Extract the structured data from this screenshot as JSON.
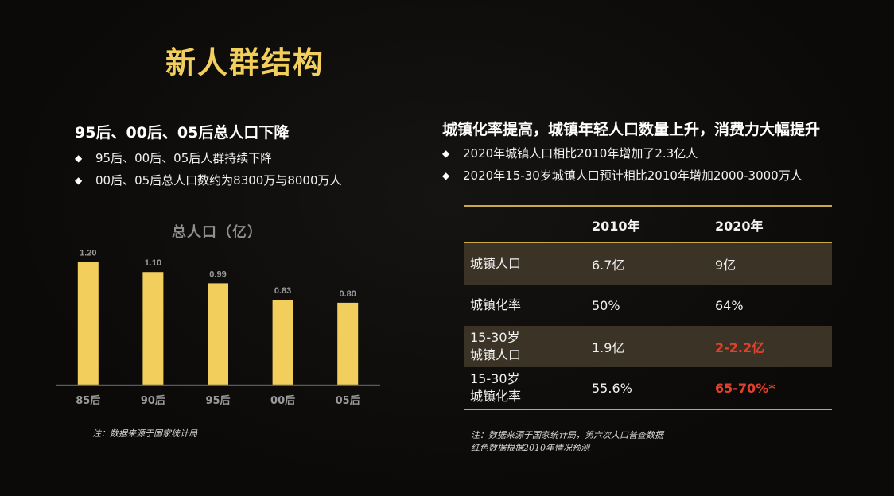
{
  "title": "新人群结构",
  "left": {
    "heading": "95后、00后、05后总人口下降",
    "bullets": [
      "95后、00后、05后人群持续下降",
      "00后、05后总人口数约为8300万与8000万人"
    ],
    "note": "注：数据来源于国家统计局"
  },
  "chart_data": {
    "type": "bar",
    "title": "总人口（亿）",
    "categories": [
      "85后",
      "90后",
      "95后",
      "00后",
      "05后"
    ],
    "values": [
      1.2,
      1.1,
      0.99,
      0.83,
      0.8
    ],
    "value_labels": [
      "1.20",
      "1.10",
      "0.99",
      "0.83",
      "0.80"
    ],
    "ylim": [
      0,
      1.35
    ],
    "grid": false,
    "bar_color": "#f2cf5c"
  },
  "right": {
    "heading": "城镇化率提高，城镇年轻人口数量上升，消费力大幅提升",
    "bullets": [
      "2020年城镇人口相比2010年增加了2.3亿人",
      "2020年15-30岁城镇人口预计相比2010年增加2000-3000万人"
    ],
    "table": {
      "headers": [
        "",
        "2010年",
        "2020年"
      ],
      "rows": [
        {
          "label": [
            "城镇人口"
          ],
          "v2010": "6.7亿",
          "v2020": "9亿",
          "red": false,
          "shade": true
        },
        {
          "label": [
            "城镇化率"
          ],
          "v2010": "50%",
          "v2020": "64%",
          "red": false,
          "shade": false
        },
        {
          "label": [
            "15-30岁",
            "城镇人口"
          ],
          "v2010": "1.9亿",
          "v2020": "2-2.2亿",
          "red": true,
          "shade": true
        },
        {
          "label": [
            "15-30岁",
            "城镇化率"
          ],
          "v2010": "55.6%",
          "v2020": "65-70%*",
          "red": true,
          "shade": false
        }
      ]
    },
    "note_lines": [
      "注：数据来源于国家统计局，第六次人口普查数据",
      "红色数据根据2010年情况预测"
    ]
  },
  "colors": {
    "accent": "#f2cf5c",
    "highlight_red": "#e2412c",
    "row_shade": "#3b3325",
    "rule": "#c9a94a"
  }
}
